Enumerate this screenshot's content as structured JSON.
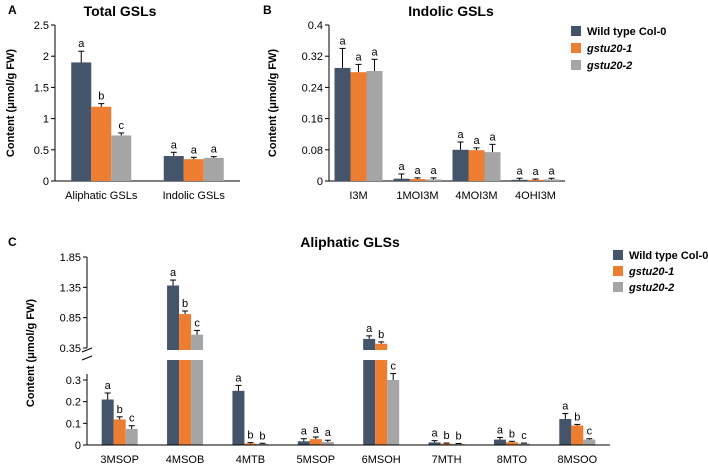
{
  "figure": {
    "series": [
      {
        "name": "Wild type Col-0",
        "color": "#44546a"
      },
      {
        "name": "gstu20-1",
        "color": "#ed7d31"
      },
      {
        "name": "gstu20-2",
        "color": "#a5a5a5"
      }
    ]
  },
  "chart_data": [
    {
      "panel": "A",
      "type": "bar",
      "title": "Total GSLs",
      "ylabel": "Content (μmol/g FW)",
      "ylim": [
        0,
        2.5
      ],
      "yticks": [
        0,
        0.5,
        1,
        1.5,
        2,
        2.5
      ],
      "ytick_labels": [
        "0",
        "0.5",
        "1",
        "1.5",
        "2",
        "2.5"
      ],
      "categories": [
        "Aliphatic GSLs",
        "Indolic GSLs"
      ],
      "series": [
        {
          "name": "Wild type Col-0",
          "values": [
            1.9,
            0.4
          ],
          "errors": [
            0.18,
            0.06
          ],
          "letters": [
            "a",
            "a"
          ]
        },
        {
          "name": "gstu20-1",
          "values": [
            1.19,
            0.35
          ],
          "errors": [
            0.05,
            0.03
          ],
          "letters": [
            "b",
            "a"
          ]
        },
        {
          "name": "gstu20-2",
          "values": [
            0.73,
            0.37
          ],
          "errors": [
            0.04,
            0.02
          ],
          "letters": [
            "c",
            "a"
          ]
        }
      ]
    },
    {
      "panel": "B",
      "type": "bar",
      "title": "Indolic GSLs",
      "ylabel": "Content (μmol/g FW)",
      "ylim": [
        0,
        0.4
      ],
      "yticks": [
        0,
        0.08,
        0.16,
        0.24,
        0.32,
        0.4
      ],
      "ytick_labels": [
        "0",
        "0.08",
        "0.16",
        "0.24",
        "0.32",
        "0.4"
      ],
      "categories": [
        "I3M",
        "1MOI3M",
        "4MOI3M",
        "4OHI3M"
      ],
      "legend": "top-right",
      "series": [
        {
          "name": "Wild type Col-0",
          "values": [
            0.29,
            0.006,
            0.08,
            0.003
          ],
          "errors": [
            0.05,
            0.012,
            0.02,
            0.004
          ],
          "letters": [
            "a",
            "a",
            "a",
            "a"
          ]
        },
        {
          "name": "gstu20-1",
          "values": [
            0.279,
            0.005,
            0.079,
            0.003
          ],
          "errors": [
            0.02,
            0.003,
            0.006,
            0.002
          ],
          "letters": [
            "a",
            "a",
            "a",
            "a"
          ]
        },
        {
          "name": "gstu20-2",
          "values": [
            0.282,
            0.004,
            0.074,
            0.004
          ],
          "errors": [
            0.03,
            0.004,
            0.02,
            0.003
          ],
          "letters": [
            "a",
            "a",
            "a",
            "a"
          ]
        }
      ]
    },
    {
      "panel": "C",
      "type": "bar",
      "title": "Aliphatic GLSs",
      "ylabel": "Content (μmol/g FW)",
      "broken_axis": {
        "lower_ylim": [
          0,
          0.3
        ],
        "upper_ylim": [
          0.35,
          1.85
        ]
      },
      "lower_yticks": [
        0,
        0.1,
        0.2,
        0.3
      ],
      "lower_ytick_labels": [
        "0",
        "0.1",
        "0.2",
        "0.3"
      ],
      "upper_yticks": [
        0.35,
        0.85,
        1.35,
        1.85
      ],
      "upper_ytick_labels": [
        "0.35",
        "0.85",
        "1.35",
        "1.85"
      ],
      "categories": [
        "3MSOP",
        "4MSOB",
        "4MTB",
        "5MSOP",
        "6MSOH",
        "7MTH",
        "8MTO",
        "8MSOO"
      ],
      "legend": "top-right",
      "series": [
        {
          "name": "Wild type Col-0",
          "values": [
            0.21,
            1.38,
            0.25,
            0.017,
            0.5,
            0.012,
            0.025,
            0.12
          ],
          "errors": [
            0.03,
            0.09,
            0.025,
            0.012,
            0.05,
            0.008,
            0.01,
            0.025
          ],
          "letters": [
            "a",
            "a",
            "a",
            "a",
            "a",
            "a",
            "a",
            "a"
          ]
        },
        {
          "name": "gstu20-1",
          "values": [
            0.118,
            0.91,
            0.007,
            0.027,
            0.42,
            0.006,
            0.013,
            0.09
          ],
          "errors": [
            0.012,
            0.05,
            0.004,
            0.01,
            0.03,
            0.003,
            0.004,
            0.005
          ],
          "letters": [
            "b",
            "b",
            "b",
            "a",
            "b",
            "b",
            "b",
            "b"
          ]
        },
        {
          "name": "gstu20-2",
          "values": [
            0.074,
            0.57,
            0.005,
            0.014,
            0.3,
            0.005,
            0.007,
            0.025
          ],
          "errors": [
            0.015,
            0.07,
            0.003,
            0.008,
            0.01,
            0.002,
            0.002,
            0.004
          ],
          "letters": [
            "c",
            "c",
            "b",
            "a",
            "c",
            "b",
            "c",
            "c"
          ]
        }
      ]
    }
  ]
}
